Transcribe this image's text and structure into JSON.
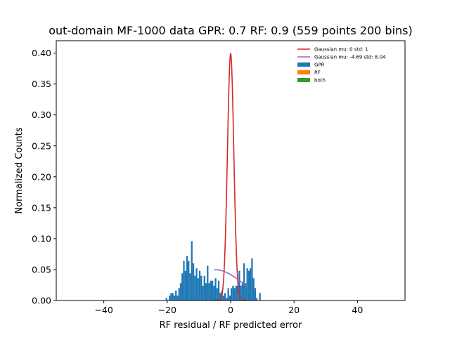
{
  "chart_data": {
    "type": "bar",
    "title": "out-domain MF-1000 data GPR: 0.7 RF: 0.9 (559 points 200 bins)",
    "xlabel": "RF residual / RF predicted error",
    "ylabel": "Normalized Counts",
    "xlim": [
      -55,
      55
    ],
    "ylim": [
      0,
      0.42
    ],
    "x_ticks": [
      -40,
      -20,
      0,
      20,
      40
    ],
    "y_ticks": [
      0.0,
      0.05,
      0.1,
      0.15,
      0.2,
      0.25,
      0.3,
      0.35,
      0.4
    ],
    "x_tick_labels": [
      "−40",
      "−20",
      "0",
      "20",
      "40"
    ],
    "y_tick_labels": [
      "0.00",
      "0.05",
      "0.10",
      "0.15",
      "0.20",
      "0.25",
      "0.30",
      "0.35",
      "0.40"
    ],
    "bin_width": 0.5,
    "legend_position": "top-right",
    "histograms": [
      {
        "name": "GPR",
        "color": "#1f77b4",
        "bin_left": [
          -20.5,
          -20.0,
          -19.5,
          -19.0,
          -18.5,
          -18.0,
          -17.5,
          -17.0,
          -16.5,
          -16.0,
          -15.5,
          -15.0,
          -14.5,
          -14.0,
          -13.5,
          -13.0,
          -12.5,
          -12.0,
          -11.5,
          -11.0,
          -10.5,
          -10.0,
          -9.5,
          -9.0,
          -8.5,
          -8.0,
          -7.5,
          -7.0,
          -6.5,
          -6.0,
          -5.5,
          -5.0,
          -4.5,
          -4.0,
          -3.5,
          -3.0,
          -2.5,
          -2.0,
          -1.5,
          -1.0,
          -0.5,
          0.0,
          0.5,
          1.0,
          1.5,
          2.0,
          2.5,
          3.0,
          3.5,
          4.0,
          4.5,
          5.0,
          5.5,
          6.0,
          6.5,
          7.0,
          7.5,
          8.0,
          8.5,
          9.0
        ],
        "values": [
          0.004,
          0.0,
          0.008,
          0.012,
          0.012,
          0.008,
          0.016,
          0.008,
          0.02,
          0.028,
          0.044,
          0.064,
          0.048,
          0.072,
          0.064,
          0.044,
          0.096,
          0.06,
          0.04,
          0.052,
          0.036,
          0.048,
          0.04,
          0.024,
          0.04,
          0.028,
          0.056,
          0.028,
          0.032,
          0.032,
          0.024,
          0.036,
          0.02,
          0.032,
          0.012,
          0.016,
          0.008,
          0.012,
          0.004,
          0.02,
          0.008,
          0.02,
          0.024,
          0.02,
          0.024,
          0.024,
          0.048,
          0.024,
          0.028,
          0.06,
          0.028,
          0.052,
          0.048,
          0.052,
          0.068,
          0.036,
          0.02,
          0.004,
          0.0,
          0.012
        ]
      },
      {
        "name": "RF",
        "color": "#ff7f0e",
        "bin_left": [],
        "values": []
      },
      {
        "name": "both",
        "color": "#2ca02c",
        "bin_left": [],
        "values": []
      }
    ],
    "curves": [
      {
        "name": "Gaussian mu: 0 std: 1",
        "color": "#d62728",
        "mu": 0,
        "std": 1,
        "x_range": [
          -5,
          5
        ]
      },
      {
        "name": "Gaussian mu: -4.69 std: 8.04",
        "color": "#9467bd",
        "mu": -4.69,
        "std": 8.04,
        "x_range": [
          -5.2,
          5.5
        ]
      }
    ],
    "legend": [
      {
        "label": "Gaussian mu: 0 std: 1",
        "kind": "line",
        "color": "#d62728"
      },
      {
        "label": "Gaussian mu: -4.69 std: 8.04",
        "kind": "line",
        "color": "#9467bd"
      },
      {
        "label": "GPR",
        "kind": "patch",
        "color": "#1f77b4"
      },
      {
        "label": "RF",
        "kind": "patch",
        "color": "#ff7f0e"
      },
      {
        "label": "both",
        "kind": "patch",
        "color": "#2ca02c"
      }
    ]
  }
}
